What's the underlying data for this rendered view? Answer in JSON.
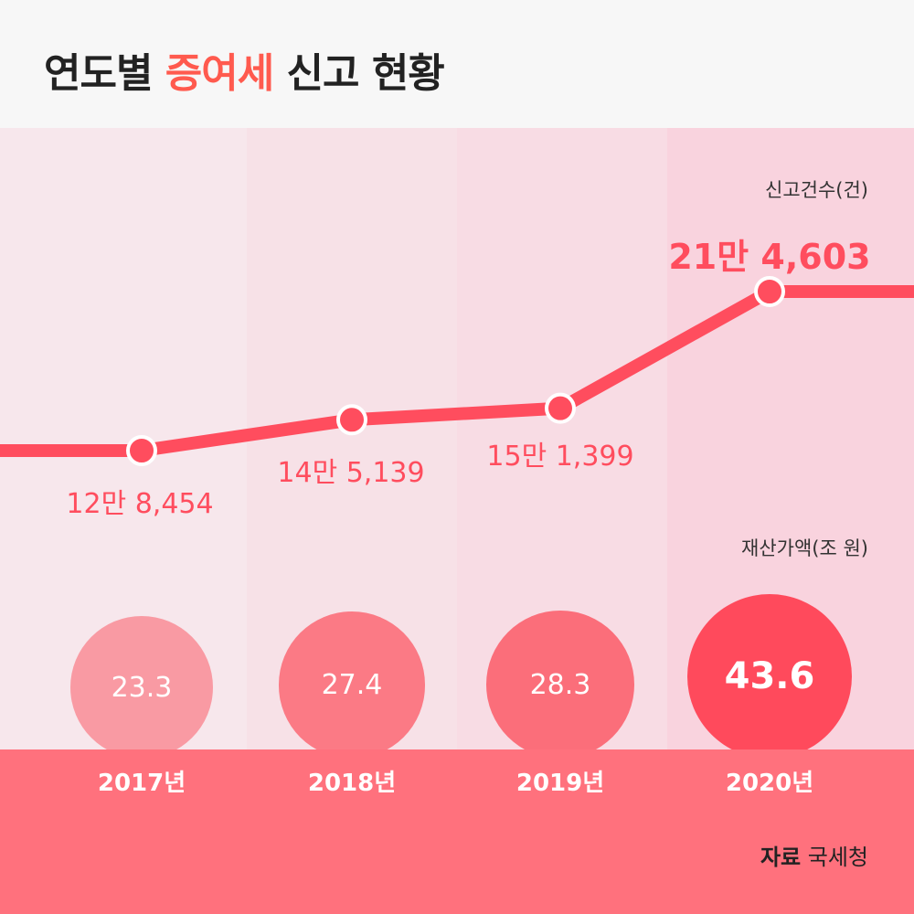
{
  "title": {
    "part1": "연도별 ",
    "accent": "증여세",
    "part2": " 신고 현황"
  },
  "colors": {
    "line": "#ff4d5e",
    "band_2017": "#f7e7ec",
    "band_2018": "#f7e1e7",
    "band_2019": "#f8dce4",
    "band_2020": "#f9d3de",
    "bubble_2017": "#f99aa3",
    "bubble_2018": "#fb7a85",
    "bubble_2019": "#fb6e7a",
    "bubble_2020": "#ff4a5c",
    "footer": "#ff717d"
  },
  "chart_data": [
    {
      "type": "line",
      "ylabel": "신고건수(건)",
      "categories": [
        "2017년",
        "2018년",
        "2019년",
        "2020년"
      ],
      "values": [
        128454,
        145139,
        151399,
        214603
      ],
      "data_labels": [
        "12만 8,454",
        "14만 5,139",
        "15만 1,399",
        "21만 4,603"
      ]
    },
    {
      "type": "scatter",
      "ylabel": "재산가액(조 원)",
      "categories": [
        "2017년",
        "2018년",
        "2019년",
        "2020년"
      ],
      "values": [
        23.3,
        27.4,
        28.3,
        43.6
      ],
      "data_labels": [
        "23.3",
        "27.4",
        "28.3",
        "43.6"
      ]
    }
  ],
  "source": {
    "label": "자료",
    "value": "국세청"
  }
}
